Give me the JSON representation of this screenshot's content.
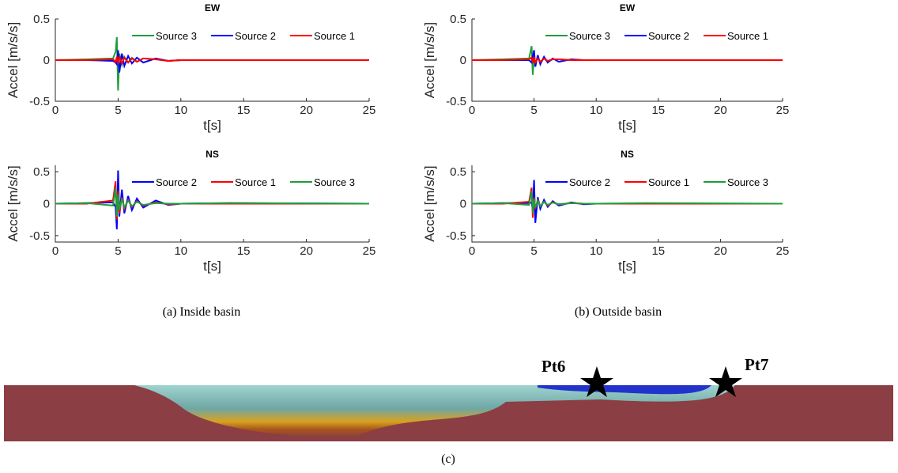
{
  "chart_data": [
    {
      "type": "line",
      "title": "EW",
      "xlabel": "t[s]",
      "ylabel": "Accel [m/s/s]",
      "xlim": [
        0,
        25
      ],
      "xticks": [
        0,
        5,
        10,
        15,
        20,
        25
      ],
      "ylim": [
        -0.5,
        0.5
      ],
      "yticks": [
        -0.5,
        0,
        0.5
      ],
      "x": [
        0,
        2.5,
        4.6,
        4.8,
        4.9,
        5.0,
        5.1,
        5.3,
        5.5,
        5.8,
        6.1,
        6.5,
        7,
        8,
        9,
        10,
        14,
        25
      ],
      "series": [
        {
          "name": "Source 3",
          "color": "#1f9e3a",
          "values": [
            0,
            0.01,
            0.02,
            0.1,
            0.28,
            -0.37,
            0.08,
            -0.06,
            0.04,
            -0.03,
            0.03,
            -0.02,
            0.02,
            0.01,
            -0.01,
            0,
            0,
            0
          ]
        },
        {
          "name": "Source 2",
          "color": "#0000ff",
          "values": [
            0,
            0,
            -0.01,
            -0.03,
            -0.05,
            0.12,
            -0.15,
            0.08,
            -0.07,
            0.05,
            -0.04,
            0.03,
            -0.03,
            0.02,
            -0.01,
            0,
            0,
            0
          ]
        },
        {
          "name": "Source 1",
          "color": "#ff0000",
          "values": [
            0,
            0,
            0.01,
            -0.02,
            0.04,
            -0.05,
            0.05,
            -0.04,
            0.03,
            -0.03,
            0.02,
            -0.02,
            0.02,
            0.01,
            -0.01,
            0,
            0,
            0
          ]
        }
      ]
    },
    {
      "type": "line",
      "title": "NS",
      "xlabel": "t[s]",
      "ylabel": "Accel [m/s/s]",
      "xlim": [
        0,
        25
      ],
      "xticks": [
        0,
        5,
        10,
        15,
        20,
        25
      ],
      "ylim": [
        -0.6,
        0.6
      ],
      "yticks": [
        -0.5,
        0,
        0.5
      ],
      "x": [
        0,
        2.5,
        4.6,
        4.8,
        4.9,
        5.0,
        5.1,
        5.3,
        5.5,
        5.8,
        6.1,
        6.5,
        7,
        8,
        9,
        10,
        14,
        25
      ],
      "series": [
        {
          "name": "Source 2",
          "color": "#0000ff",
          "values": [
            0,
            0.01,
            0.02,
            -0.05,
            -0.4,
            0.52,
            -0.2,
            0.22,
            -0.15,
            0.12,
            -0.1,
            0.08,
            -0.06,
            0.05,
            -0.02,
            0,
            0.01,
            0
          ]
        },
        {
          "name": "Source 1",
          "color": "#ff0000",
          "values": [
            0,
            0,
            0.05,
            0.35,
            -0.25,
            0.2,
            -0.15,
            0.1,
            -0.08,
            0.06,
            -0.05,
            0.04,
            -0.03,
            0.02,
            -0.01,
            0,
            0,
            0
          ]
        },
        {
          "name": "Source 3",
          "color": "#1f9e3a",
          "values": [
            0,
            0.01,
            -0.03,
            0.25,
            -0.2,
            0.15,
            -0.1,
            0.08,
            -0.06,
            0.05,
            -0.04,
            0.03,
            -0.02,
            0.01,
            0,
            0,
            0.01,
            0
          ]
        }
      ]
    },
    {
      "type": "line",
      "title": "EW",
      "xlabel": "t[s]",
      "ylabel": "Accel [m/s/s]",
      "xlim": [
        0,
        25
      ],
      "xticks": [
        0,
        5,
        10,
        15,
        20,
        25
      ],
      "ylim": [
        -0.5,
        0.5
      ],
      "yticks": [
        -0.5,
        0,
        0.5
      ],
      "x": [
        0,
        2.5,
        4.6,
        4.8,
        4.9,
        5.0,
        5.1,
        5.3,
        5.5,
        5.8,
        6.1,
        6.5,
        7,
        8,
        9,
        10,
        14,
        25
      ],
      "series": [
        {
          "name": "Source 3",
          "color": "#1f9e3a",
          "values": [
            0,
            0.01,
            0.02,
            0.17,
            -0.18,
            0.05,
            -0.04,
            0.03,
            -0.03,
            0.02,
            -0.02,
            0.01,
            0.01,
            0,
            0,
            0,
            0,
            0
          ]
        },
        {
          "name": "Source 2",
          "color": "#0000ff",
          "values": [
            0,
            0,
            0,
            -0.03,
            0.05,
            0.12,
            -0.08,
            0.06,
            -0.05,
            0.04,
            -0.03,
            0.02,
            -0.02,
            0.01,
            0,
            0,
            0,
            0
          ]
        },
        {
          "name": "Source 1",
          "color": "#ff0000",
          "values": [
            0,
            0,
            0.01,
            0.03,
            -0.03,
            0.04,
            -0.03,
            0.02,
            -0.02,
            0.02,
            -0.01,
            0.01,
            0.01,
            0,
            0,
            0,
            0,
            0
          ]
        }
      ]
    },
    {
      "type": "line",
      "title": "NS",
      "xlabel": "t[s]",
      "ylabel": "Accel [m/s/s]",
      "xlim": [
        0,
        25
      ],
      "xticks": [
        0,
        5,
        10,
        15,
        20,
        25
      ],
      "ylim": [
        -0.6,
        0.6
      ],
      "yticks": [
        -0.5,
        0,
        0.5
      ],
      "x": [
        0,
        2.5,
        4.6,
        4.8,
        4.9,
        5.0,
        5.1,
        5.3,
        5.5,
        5.8,
        6.1,
        6.5,
        7,
        8,
        9,
        10,
        14,
        25
      ],
      "series": [
        {
          "name": "Source 2",
          "color": "#0000ff",
          "values": [
            0,
            0.01,
            0.01,
            0.02,
            -0.1,
            0.37,
            -0.3,
            0.1,
            -0.08,
            0.06,
            -0.05,
            0.04,
            -0.03,
            0.02,
            -0.01,
            0,
            0,
            0
          ]
        },
        {
          "name": "Source 1",
          "color": "#ff0000",
          "values": [
            0,
            0,
            0.03,
            0.25,
            -0.22,
            0.1,
            -0.08,
            0.06,
            -0.04,
            0.03,
            -0.03,
            0.02,
            -0.01,
            0.01,
            0,
            0,
            0,
            0
          ]
        },
        {
          "name": "Source 3",
          "color": "#1f9e3a",
          "values": [
            0,
            0.01,
            -0.02,
            0.2,
            -0.15,
            0.08,
            -0.06,
            0.05,
            -0.04,
            0.03,
            -0.02,
            0.02,
            -0.01,
            0.01,
            0,
            0,
            0.01,
            0
          ]
        }
      ]
    }
  ],
  "captions": [
    "(a) Inside basin",
    "(b) Outside basin",
    "(c)"
  ],
  "basin": {
    "labels": [
      "Pt6",
      "Pt7"
    ]
  }
}
